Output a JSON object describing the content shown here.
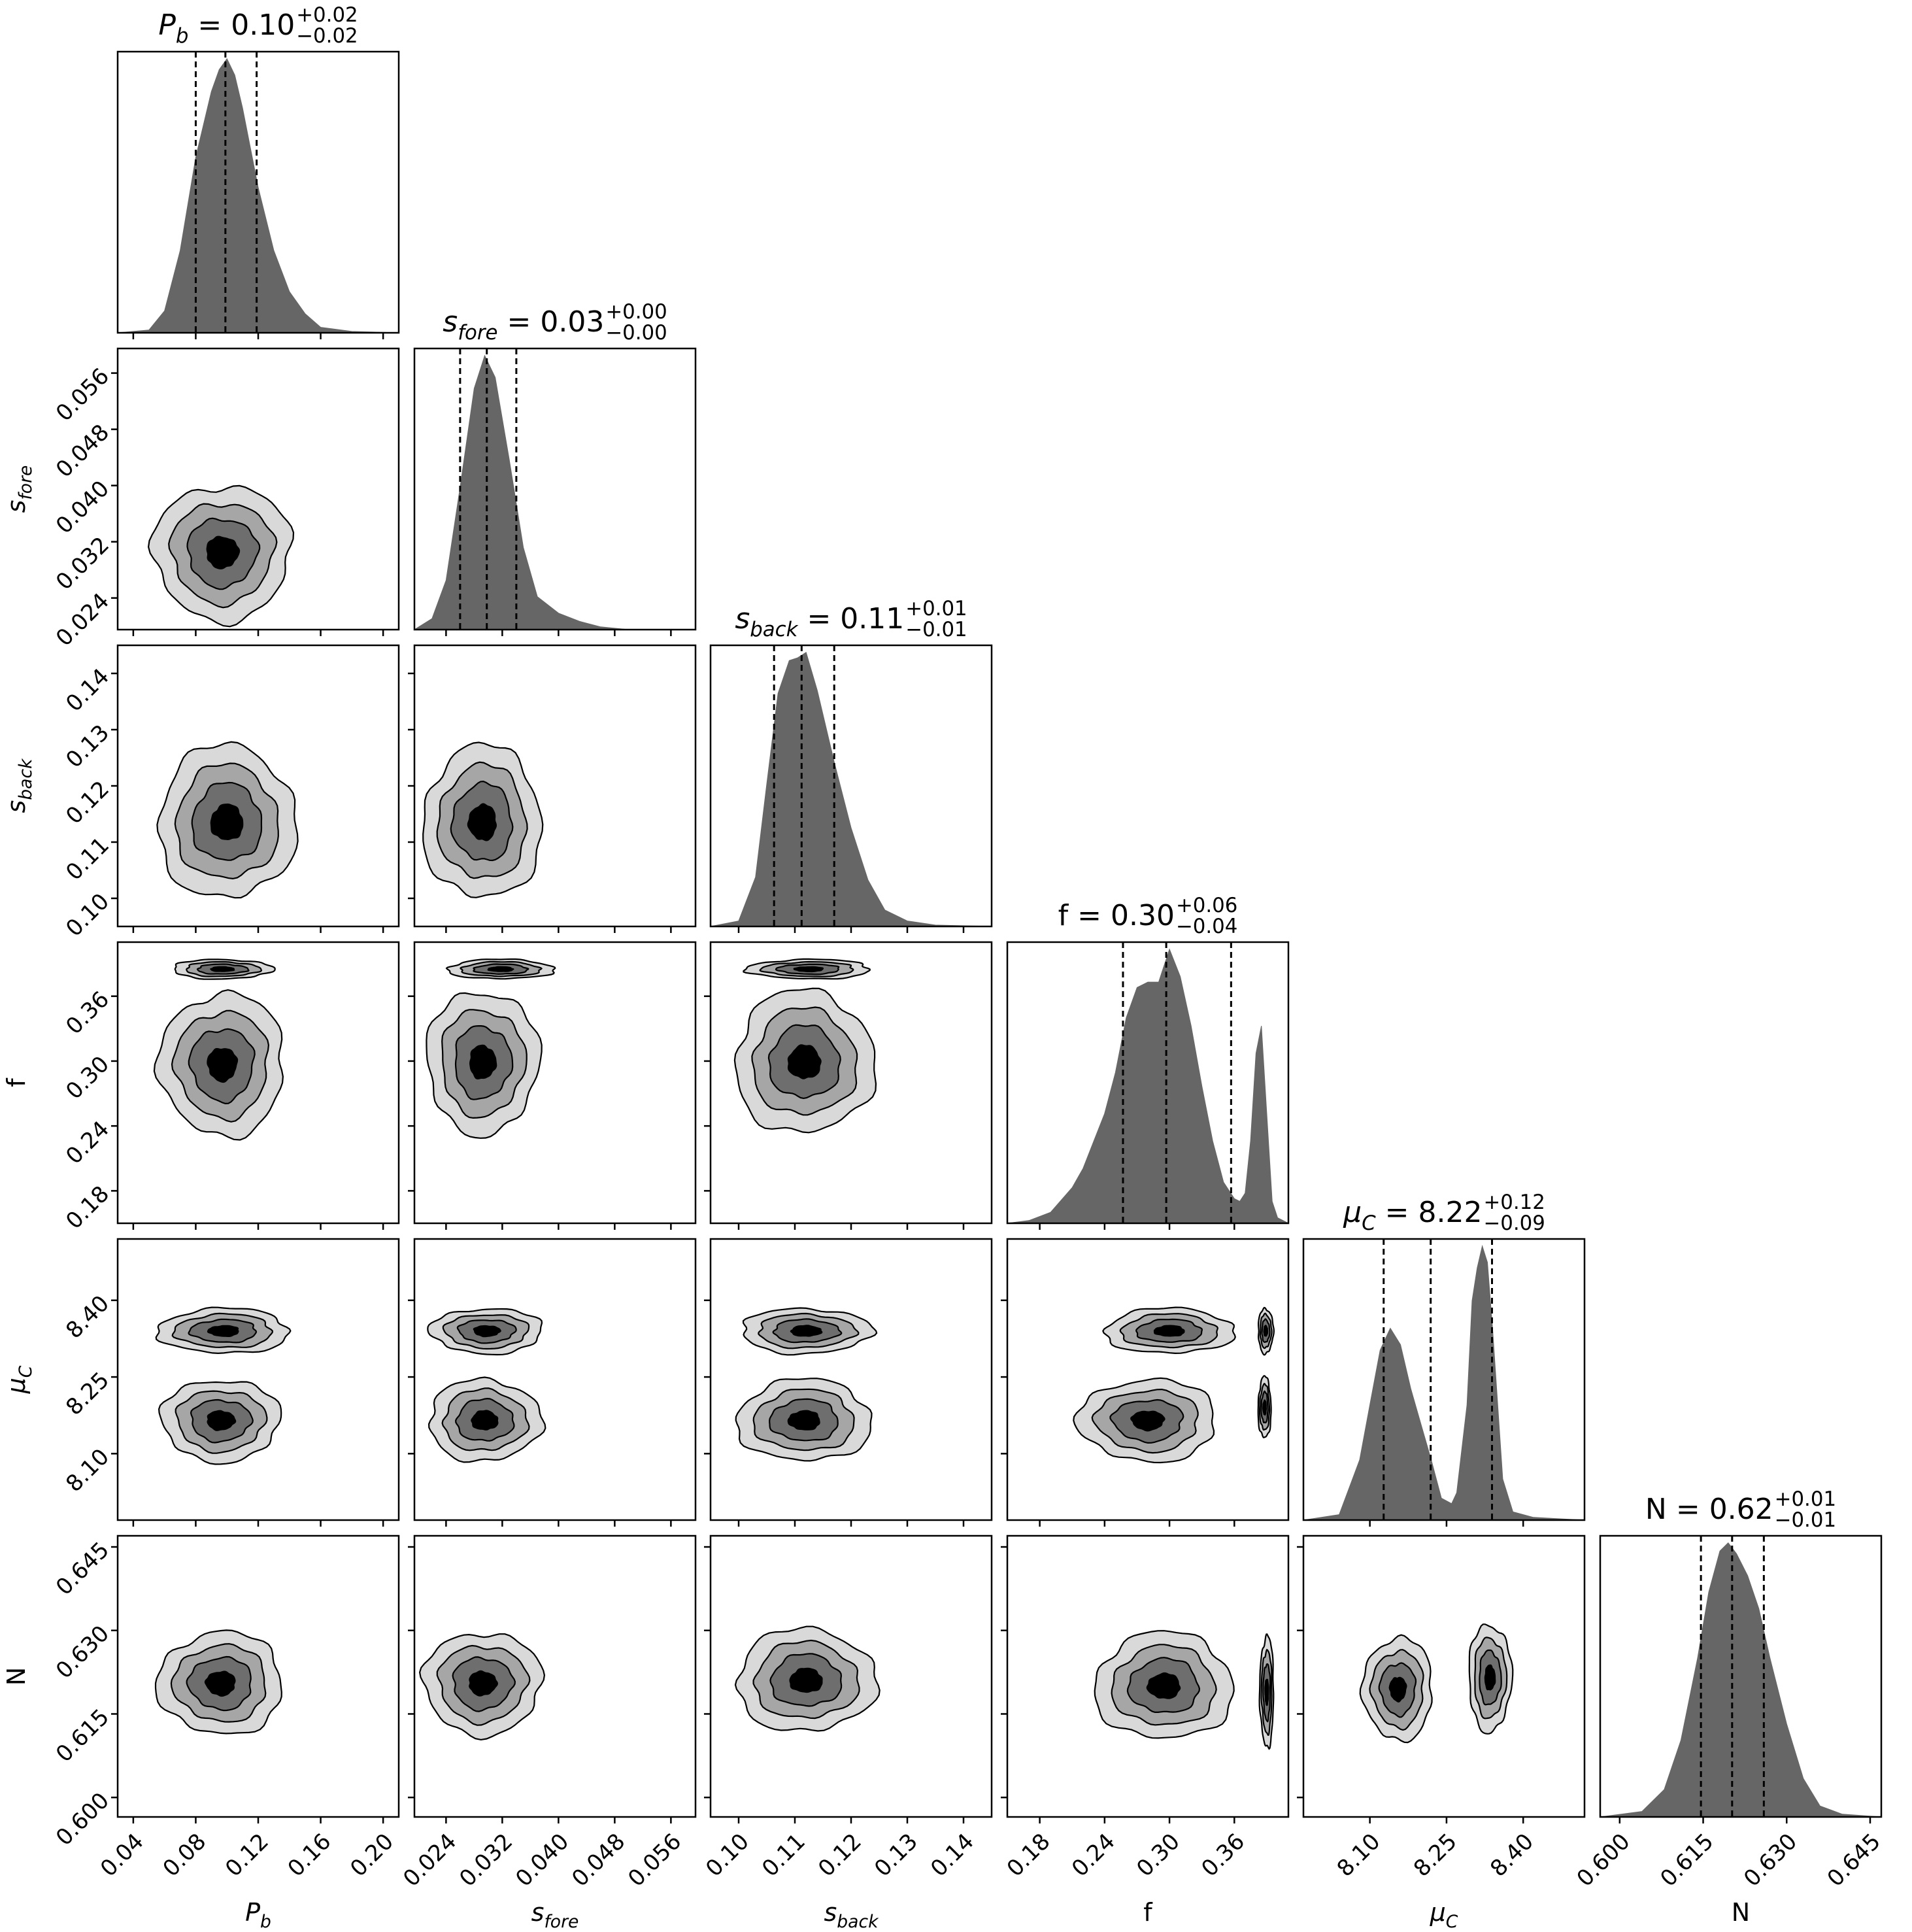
{
  "figure": {
    "type": "corner-plot",
    "contour_fill_colors": [
      "#d9d9d9",
      "#a6a6a6",
      "#6e6e6e",
      "#000000"
    ],
    "histogram_color": "#666666",
    "frame_color": "#000000",
    "quantile_line_style": "dashed"
  },
  "chart_data": {
    "type": "corner",
    "parameters": [
      {
        "id": "pb",
        "base": "P",
        "sub": "b",
        "title": {
          "lhs": "P",
          "lhs_sub": "b",
          "value": "0.10",
          "plus": "+0.02",
          "minus": "−0.02"
        },
        "range": [
          0.03,
          0.21
        ],
        "ticks": [
          0.04,
          0.08,
          0.12,
          0.16,
          0.2
        ],
        "tick_labels": [
          "0.04",
          "0.08",
          "0.12",
          "0.16",
          "0.20"
        ],
        "quantiles": [
          0.08,
          0.099,
          0.119
        ],
        "marginal": {
          "x": [
            0.03,
            0.05,
            0.06,
            0.07,
            0.08,
            0.09,
            0.095,
            0.1,
            0.105,
            0.11,
            0.12,
            0.13,
            0.14,
            0.15,
            0.16,
            0.18,
            0.21
          ],
          "y": [
            0.0,
            0.01,
            0.08,
            0.3,
            0.64,
            0.88,
            0.96,
            1.0,
            0.94,
            0.82,
            0.53,
            0.3,
            0.15,
            0.07,
            0.02,
            0.005,
            0.0
          ]
        }
      },
      {
        "id": "sfore",
        "base": "s",
        "sub": "fore",
        "title": {
          "lhs": "s",
          "lhs_sub": "fore",
          "value": "0.03",
          "plus": "+0.00",
          "minus": "−0.00"
        },
        "range": [
          0.0195,
          0.0595
        ],
        "ticks": [
          0.024,
          0.032,
          0.04,
          0.048,
          0.056
        ],
        "tick_labels": [
          "0.024",
          "0.032",
          "0.040",
          "0.048",
          "0.056"
        ],
        "quantiles": [
          0.026,
          0.0298,
          0.034
        ],
        "marginal": {
          "x": [
            0.0195,
            0.022,
            0.024,
            0.026,
            0.028,
            0.0295,
            0.031,
            0.033,
            0.035,
            0.037,
            0.04,
            0.043,
            0.046,
            0.05,
            0.0595
          ],
          "y": [
            0.0,
            0.04,
            0.18,
            0.52,
            0.88,
            1.0,
            0.92,
            0.62,
            0.3,
            0.12,
            0.06,
            0.03,
            0.01,
            0.0,
            0.0
          ]
        }
      },
      {
        "id": "sback",
        "base": "s",
        "sub": "back",
        "title": {
          "lhs": "s",
          "lhs_sub": "back",
          "value": "0.11",
          "plus": "+0.01",
          "minus": "−0.01"
        },
        "range": [
          0.095,
          0.145
        ],
        "ticks": [
          0.1,
          0.11,
          0.12,
          0.13,
          0.14
        ],
        "tick_labels": [
          "0.10",
          "0.11",
          "0.12",
          "0.13",
          "0.14"
        ],
        "quantiles": [
          0.1063,
          0.1112,
          0.117
        ],
        "marginal": {
          "x": [
            0.095,
            0.1,
            0.103,
            0.105,
            0.107,
            0.109,
            0.1105,
            0.112,
            0.114,
            0.117,
            0.12,
            0.123,
            0.126,
            0.13,
            0.135,
            0.145
          ],
          "y": [
            0.0,
            0.02,
            0.18,
            0.52,
            0.85,
            0.97,
            0.98,
            1.0,
            0.86,
            0.6,
            0.36,
            0.17,
            0.06,
            0.02,
            0.005,
            0.0
          ]
        }
      },
      {
        "id": "f",
        "base": "f",
        "sub": "",
        "title": {
          "lhs": "f",
          "lhs_sub": "",
          "value": "0.30",
          "plus": "+0.06",
          "minus": "−0.04"
        },
        "range": [
          0.15,
          0.41
        ],
        "ticks": [
          0.18,
          0.24,
          0.3,
          0.36
        ],
        "tick_labels": [
          "0.18",
          "0.24",
          "0.30",
          "0.36"
        ],
        "quantiles": [
          0.257,
          0.297,
          0.357
        ],
        "marginal": {
          "x": [
            0.15,
            0.17,
            0.19,
            0.21,
            0.22,
            0.23,
            0.24,
            0.25,
            0.26,
            0.27,
            0.28,
            0.29,
            0.3,
            0.31,
            0.32,
            0.33,
            0.34,
            0.35,
            0.36,
            0.365,
            0.37,
            0.375,
            0.38,
            0.385,
            0.39,
            0.395,
            0.4,
            0.41
          ],
          "y": [
            0.0,
            0.01,
            0.04,
            0.13,
            0.2,
            0.3,
            0.4,
            0.55,
            0.75,
            0.86,
            0.88,
            0.88,
            1.0,
            0.9,
            0.72,
            0.5,
            0.3,
            0.15,
            0.09,
            0.08,
            0.11,
            0.3,
            0.62,
            0.72,
            0.4,
            0.08,
            0.02,
            0.0
          ]
        }
      },
      {
        "id": "muc",
        "base": "μ",
        "sub": "C",
        "title": {
          "lhs": "μ",
          "lhs_sub": "C",
          "value": "8.22",
          "plus": "+0.12",
          "minus": "−0.09"
        },
        "range": [
          7.97,
          8.52
        ],
        "ticks": [
          8.1,
          8.25,
          8.4
        ],
        "tick_labels": [
          "8.10",
          "8.25",
          "8.40"
        ],
        "quantiles": [
          8.127,
          8.219,
          8.339
        ],
        "marginal": {
          "x": [
            7.97,
            8.04,
            8.08,
            8.1,
            8.12,
            8.14,
            8.16,
            8.18,
            8.2,
            8.22,
            8.24,
            8.26,
            8.27,
            8.29,
            8.3,
            8.31,
            8.32,
            8.33,
            8.34,
            8.36,
            8.38,
            8.42,
            8.52
          ],
          "y": [
            0.0,
            0.02,
            0.22,
            0.42,
            0.62,
            0.7,
            0.64,
            0.48,
            0.35,
            0.22,
            0.08,
            0.06,
            0.1,
            0.42,
            0.8,
            0.92,
            1.0,
            0.94,
            0.7,
            0.15,
            0.03,
            0.01,
            0.0
          ]
        }
      },
      {
        "id": "n",
        "base": "N",
        "sub": "",
        "title": {
          "lhs": "N",
          "lhs_sub": "",
          "value": "0.62",
          "plus": "+0.01",
          "minus": "−0.01"
        },
        "range": [
          0.5965,
          0.647
        ],
        "ticks": [
          0.6,
          0.615,
          0.63,
          0.645
        ],
        "tick_labels": [
          "0.600",
          "0.615",
          "0.630",
          "0.645"
        ],
        "quantiles": [
          0.6146,
          0.6202,
          0.6259
        ],
        "marginal": {
          "x": [
            0.5965,
            0.604,
            0.608,
            0.611,
            0.614,
            0.616,
            0.618,
            0.6195,
            0.621,
            0.623,
            0.625,
            0.627,
            0.63,
            0.633,
            0.636,
            0.64,
            0.647
          ],
          "y": [
            0.0,
            0.02,
            0.1,
            0.28,
            0.58,
            0.82,
            0.97,
            1.0,
            0.96,
            0.88,
            0.76,
            0.58,
            0.34,
            0.14,
            0.04,
            0.01,
            0.0
          ]
        }
      }
    ],
    "joint": [
      {
        "x": "pb",
        "y": "sfore",
        "blobs": [
          {
            "cx": 0.097,
            "cy": 0.0305,
            "sx": 0.022,
            "sy": 0.0048,
            "rho": 0.2
          }
        ]
      },
      {
        "x": "pb",
        "y": "sback",
        "blobs": [
          {
            "cx": 0.1,
            "cy": 0.1135,
            "sx": 0.022,
            "sy": 0.0068,
            "rho": -0.45
          }
        ]
      },
      {
        "x": "sfore",
        "y": "sback",
        "blobs": [
          {
            "cx": 0.0292,
            "cy": 0.1135,
            "sx": 0.0042,
            "sy": 0.0068,
            "rho": -0.05
          }
        ]
      },
      {
        "x": "pb",
        "y": "f",
        "blobs": [
          {
            "cx": 0.097,
            "cy": 0.297,
            "sx": 0.02,
            "sy": 0.033,
            "rho": 0.0
          },
          {
            "cx": 0.097,
            "cy": 0.385,
            "sx": 0.016,
            "sy": 0.0045,
            "rho": 0.0
          }
        ]
      },
      {
        "x": "sfore",
        "y": "f",
        "blobs": [
          {
            "cx": 0.0292,
            "cy": 0.299,
            "sx": 0.004,
            "sy": 0.033,
            "rho": 0.1
          },
          {
            "cx": 0.0318,
            "cy": 0.385,
            "sx": 0.0038,
            "sy": 0.0045,
            "rho": 0.0
          }
        ]
      },
      {
        "x": "sback",
        "y": "f",
        "blobs": [
          {
            "cx": 0.1117,
            "cy": 0.299,
            "sx": 0.0062,
            "sy": 0.033,
            "rho": -0.05
          },
          {
            "cx": 0.1125,
            "cy": 0.385,
            "sx": 0.0055,
            "sy": 0.0045,
            "rho": 0.0
          }
        ]
      },
      {
        "x": "pb",
        "y": "muc",
        "blobs": [
          {
            "cx": 0.098,
            "cy": 8.34,
            "sx": 0.021,
            "sy": 0.022,
            "rho": 0.0
          },
          {
            "cx": 0.096,
            "cy": 8.165,
            "sx": 0.019,
            "sy": 0.04,
            "rho": 0.0
          }
        ]
      },
      {
        "x": "sfore",
        "y": "muc",
        "blobs": [
          {
            "cx": 0.0298,
            "cy": 8.34,
            "sx": 0.004,
            "sy": 0.022,
            "rho": 0.0
          },
          {
            "cx": 0.0295,
            "cy": 8.165,
            "sx": 0.004,
            "sy": 0.04,
            "rho": 0.0
          }
        ]
      },
      {
        "x": "sback",
        "y": "muc",
        "blobs": [
          {
            "cx": 0.112,
            "cy": 8.34,
            "sx": 0.0058,
            "sy": 0.022,
            "rho": 0.0
          },
          {
            "cx": 0.1117,
            "cy": 8.165,
            "sx": 0.006,
            "sy": 0.04,
            "rho": 0.0
          }
        ]
      },
      {
        "x": "f",
        "y": "muc",
        "blobs": [
          {
            "cx": 0.3,
            "cy": 8.34,
            "sx": 0.03,
            "sy": 0.022,
            "rho": 0.0
          },
          {
            "cx": 0.28,
            "cy": 8.165,
            "sx": 0.032,
            "sy": 0.04,
            "rho": 0.0
          },
          {
            "cx": 0.389,
            "cy": 8.34,
            "sx": 0.0035,
            "sy": 0.022,
            "rho": 0.0
          },
          {
            "cx": 0.388,
            "cy": 8.19,
            "sx": 0.003,
            "sy": 0.03,
            "rho": 0.0
          }
        ]
      },
      {
        "x": "pb",
        "y": "n",
        "blobs": [
          {
            "cx": 0.096,
            "cy": 0.6205,
            "sx": 0.02,
            "sy": 0.0046,
            "rho": 0.0
          }
        ]
      },
      {
        "x": "sfore",
        "y": "n",
        "blobs": [
          {
            "cx": 0.0292,
            "cy": 0.6205,
            "sx": 0.0042,
            "sy": 0.0046,
            "rho": -0.05
          }
        ]
      },
      {
        "x": "sback",
        "y": "n",
        "blobs": [
          {
            "cx": 0.112,
            "cy": 0.621,
            "sx": 0.0062,
            "sy": 0.0046,
            "rho": -0.35
          }
        ]
      },
      {
        "x": "f",
        "y": "n",
        "blobs": [
          {
            "cx": 0.295,
            "cy": 0.62,
            "sx": 0.032,
            "sy": 0.0048,
            "rho": 0.0
          },
          {
            "cx": 0.39,
            "cy": 0.619,
            "sx": 0.0032,
            "sy": 0.005,
            "rho": 0.45
          }
        ]
      },
      {
        "x": "muc",
        "y": "n",
        "blobs": [
          {
            "cx": 8.155,
            "cy": 0.6195,
            "sx": 0.034,
            "sy": 0.0046,
            "rho": 0.0
          },
          {
            "cx": 8.335,
            "cy": 0.6215,
            "sx": 0.021,
            "sy": 0.0048,
            "rho": 0.1
          }
        ]
      }
    ]
  }
}
